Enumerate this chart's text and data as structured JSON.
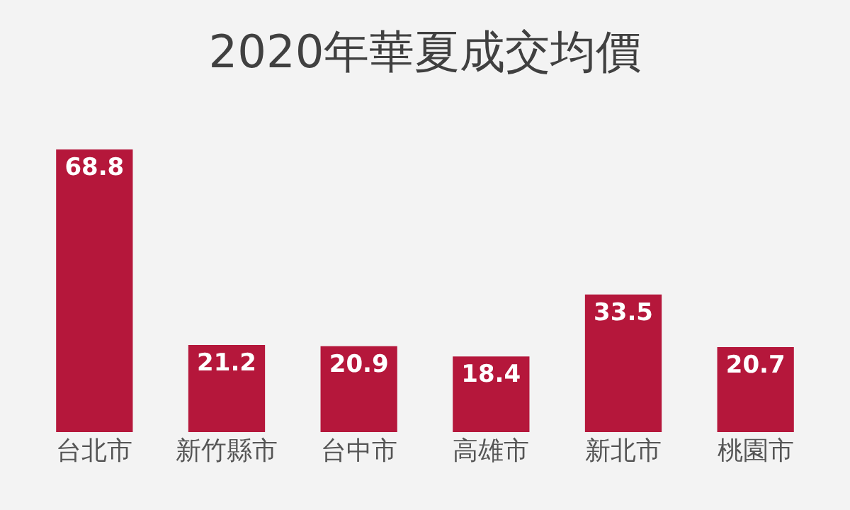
{
  "chart_data": {
    "type": "bar",
    "title": "2020年華夏成交均價",
    "categories": [
      "台北市",
      "新竹縣市",
      "台中市",
      "高雄市",
      "新北市",
      "桃園市"
    ],
    "values": [
      68.8,
      21.2,
      20.9,
      18.4,
      33.5,
      20.7
    ],
    "color": "#b5173b",
    "data_labels": true
  }
}
